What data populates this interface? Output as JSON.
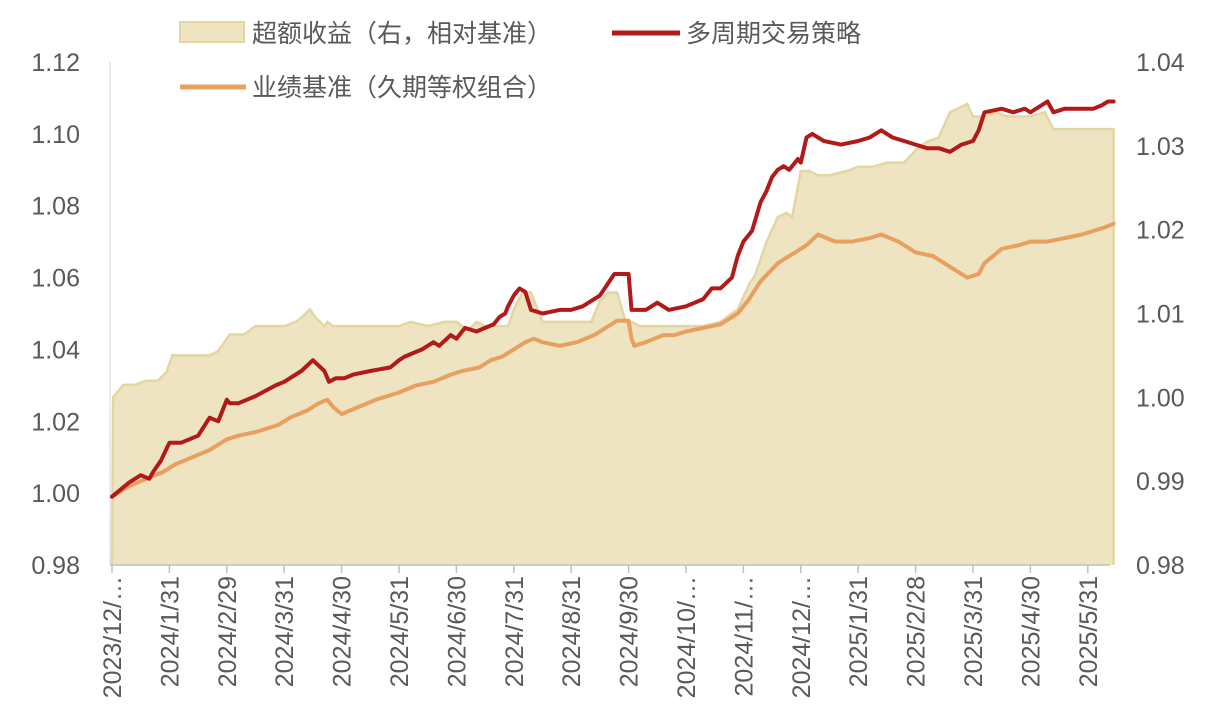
{
  "chart_data": {
    "type": "line",
    "title": "",
    "xlabel": "",
    "ylabel_left": "",
    "ylabel_right": "",
    "colors": {
      "excess_fill": "#eee4c2",
      "excess_stroke": "#e3d6a2",
      "strategy": "#b21a1a",
      "benchmark": "#e8a060",
      "axis": "#595959"
    },
    "legend": [
      {
        "key": "excess",
        "label": "超额收益（右，相对基准）",
        "marker": "box"
      },
      {
        "key": "strategy",
        "label": "多周期交易策略",
        "marker": "line"
      },
      {
        "key": "benchmark",
        "label": "业绩基准（久期等权组合）",
        "marker": "line"
      }
    ],
    "left_axis": {
      "min": 0.98,
      "max": 1.12,
      "ticks": [
        "0.98",
        "1.00",
        "1.02",
        "1.04",
        "1.06",
        "1.08",
        "1.10",
        "1.12"
      ]
    },
    "right_axis": {
      "min": 0.98,
      "max": 1.04,
      "ticks": [
        "0.98",
        "0.99",
        "1.00",
        "1.01",
        "1.02",
        "1.03",
        "1.04"
      ]
    },
    "x_tick_labels": [
      "2023/12/…",
      "2024/1/31",
      "2024/2/29",
      "2024/3/31",
      "2024/4/30",
      "2024/5/31",
      "2024/6/30",
      "2024/7/31",
      "2024/8/31",
      "2024/9/30",
      "2024/10/…",
      "2024/11/…",
      "2024/12/…",
      "2025/1/31",
      "2025/2/28",
      "2025/3/31",
      "2025/4/30",
      "2025/5/31"
    ],
    "x_tick_positions": [
      0,
      1,
      2,
      3,
      4,
      5,
      6,
      7,
      8,
      9,
      10,
      11,
      12,
      13,
      14,
      15,
      16,
      17
    ],
    "x_range": [
      0,
      17.45
    ],
    "series": [
      {
        "key": "strategy",
        "axis": "left",
        "x": [
          0,
          0.3,
          0.5,
          0.65,
          0.72,
          0.85,
          1,
          1.2,
          1.5,
          1.7,
          1.85,
          2,
          2.05,
          2.2,
          2.5,
          2.85,
          3,
          3.3,
          3.5,
          3.7,
          3.78,
          3.9,
          4.05,
          4.2,
          4.5,
          4.85,
          5,
          5.1,
          5.4,
          5.6,
          5.7,
          5.9,
          6,
          6.15,
          6.35,
          6.5,
          6.65,
          6.75,
          6.85,
          6.9,
          7,
          7.1,
          7.2,
          7.3,
          7.5,
          7.8,
          8,
          8.2,
          8.5,
          8.75,
          8.9,
          9,
          9.05,
          9.3,
          9.5,
          9.7,
          10,
          10.3,
          10.45,
          10.6,
          10.8,
          10.9,
          11,
          11.15,
          11.3,
          11.4,
          11.5,
          11.6,
          11.7,
          11.8,
          11.95,
          12,
          12.1,
          12.2,
          12.4,
          12.7,
          13,
          13.2,
          13.4,
          13.6,
          13.8,
          14,
          14.2,
          14.4,
          14.6,
          14.8,
          15,
          15.1,
          15.2,
          15.5,
          15.7,
          15.9,
          16,
          16.2,
          16.3,
          16.4,
          16.6,
          16.9,
          17.1,
          17.25,
          17.35,
          17.45
        ],
        "y": [
          0.999,
          1.003,
          1.005,
          1.004,
          1.006,
          1.009,
          1.014,
          1.014,
          1.016,
          1.021,
          1.02,
          1.026,
          1.025,
          1.025,
          1.027,
          1.03,
          1.031,
          1.034,
          1.037,
          1.034,
          1.031,
          1.032,
          1.032,
          1.033,
          1.034,
          1.035,
          1.037,
          1.038,
          1.04,
          1.042,
          1.041,
          1.044,
          1.043,
          1.046,
          1.045,
          1.046,
          1.047,
          1.049,
          1.05,
          1.052,
          1.055,
          1.057,
          1.056,
          1.051,
          1.05,
          1.051,
          1.051,
          1.052,
          1.055,
          1.061,
          1.061,
          1.061,
          1.051,
          1.051,
          1.053,
          1.051,
          1.052,
          1.054,
          1.057,
          1.057,
          1.06,
          1.066,
          1.07,
          1.073,
          1.081,
          1.084,
          1.088,
          1.09,
          1.091,
          1.09,
          1.093,
          1.092,
          1.099,
          1.1,
          1.098,
          1.097,
          1.098,
          1.099,
          1.101,
          1.099,
          1.098,
          1.097,
          1.096,
          1.096,
          1.095,
          1.097,
          1.098,
          1.101,
          1.106,
          1.107,
          1.106,
          1.107,
          1.106,
          1.108,
          1.109,
          1.106,
          1.107,
          1.107,
          1.107,
          1.108,
          1.109,
          1.109
        ]
      },
      {
        "key": "benchmark",
        "axis": "left",
        "x": [
          0,
          0.3,
          0.6,
          0.9,
          1.1,
          1.4,
          1.7,
          2,
          2.2,
          2.5,
          2.9,
          3.1,
          3.4,
          3.6,
          3.75,
          3.85,
          4,
          4.3,
          4.6,
          5,
          5.3,
          5.6,
          5.9,
          6.1,
          6.4,
          6.6,
          6.8,
          7,
          7.1,
          7.2,
          7.35,
          7.5,
          7.8,
          8.1,
          8.4,
          8.6,
          8.8,
          9,
          9.05,
          9.1,
          9.3,
          9.6,
          9.8,
          10,
          10.3,
          10.6,
          10.9,
          11.1,
          11.3,
          11.6,
          11.9,
          12.1,
          12.3,
          12.6,
          12.9,
          13.2,
          13.4,
          13.7,
          14,
          14.3,
          14.5,
          14.7,
          14.9,
          15.1,
          15.2,
          15.5,
          15.8,
          16,
          16.3,
          16.6,
          16.9,
          17.1,
          17.3,
          17.45
        ],
        "y": [
          0.999,
          1.002,
          1.004,
          1.006,
          1.008,
          1.01,
          1.012,
          1.015,
          1.016,
          1.017,
          1.019,
          1.021,
          1.023,
          1.025,
          1.026,
          1.024,
          1.022,
          1.024,
          1.026,
          1.028,
          1.03,
          1.031,
          1.033,
          1.034,
          1.035,
          1.037,
          1.038,
          1.04,
          1.041,
          1.042,
          1.043,
          1.042,
          1.041,
          1.042,
          1.044,
          1.046,
          1.048,
          1.048,
          1.043,
          1.041,
          1.042,
          1.044,
          1.044,
          1.045,
          1.046,
          1.047,
          1.05,
          1.054,
          1.059,
          1.064,
          1.067,
          1.069,
          1.072,
          1.07,
          1.07,
          1.071,
          1.072,
          1.07,
          1.067,
          1.066,
          1.064,
          1.062,
          1.06,
          1.061,
          1.064,
          1.068,
          1.069,
          1.07,
          1.07,
          1.071,
          1.072,
          1.073,
          1.074,
          1.075
        ]
      },
      {
        "key": "excess",
        "axis": "right",
        "type": "area",
        "x": [
          0,
          0.02,
          0.2,
          0.4,
          0.6,
          0.8,
          0.95,
          1.05,
          1.2,
          1.5,
          1.7,
          1.85,
          2.05,
          2.3,
          2.5,
          2.7,
          2.9,
          3,
          3.2,
          3.3,
          3.45,
          3.55,
          3.7,
          3.75,
          3.85,
          4,
          4.3,
          4.6,
          5,
          5.2,
          5.5,
          5.8,
          6,
          6.2,
          6.35,
          6.5,
          6.7,
          6.9,
          7,
          7.15,
          7.3,
          7.5,
          7.8,
          8.1,
          8.35,
          8.5,
          8.65,
          8.8,
          8.95,
          9.05,
          9.2,
          9.4,
          9.7,
          10,
          10.3,
          10.6,
          10.9,
          11.1,
          11.2,
          11.4,
          11.6,
          11.75,
          11.85,
          12,
          12.15,
          12.3,
          12.5,
          12.8,
          13,
          13.25,
          13.5,
          13.8,
          14,
          14.2,
          14.4,
          14.6,
          14.75,
          14.9,
          15,
          15.2,
          15.4,
          15.6,
          15.8,
          16,
          16.25,
          16.4,
          16.6,
          16.8,
          17,
          17.2,
          17.45
        ],
        "y": [
          0.98,
          1.0,
          1.0015,
          1.0015,
          1.002,
          1.002,
          1.003,
          1.005,
          1.005,
          1.005,
          1.005,
          1.0055,
          1.0075,
          1.0075,
          1.0085,
          1.0085,
          1.0085,
          1.0085,
          1.009,
          1.0095,
          1.0105,
          1.0095,
          1.0085,
          1.009,
          1.0085,
          1.0085,
          1.0085,
          1.0085,
          1.0085,
          1.009,
          1.0085,
          1.009,
          1.009,
          1.008,
          1.009,
          1.0085,
          1.0085,
          1.0085,
          1.0105,
          1.0125,
          1.0125,
          1.009,
          1.009,
          1.009,
          1.009,
          1.0115,
          1.0125,
          1.0125,
          1.009,
          1.009,
          1.0085,
          1.0085,
          1.0085,
          1.0085,
          1.0085,
          1.009,
          1.0105,
          1.0135,
          1.0145,
          1.0185,
          1.0215,
          1.022,
          1.0215,
          1.027,
          1.027,
          1.0265,
          1.0265,
          1.027,
          1.0275,
          1.0275,
          1.028,
          1.028,
          1.0295,
          1.0305,
          1.031,
          1.034,
          1.0345,
          1.035,
          1.0335,
          1.0335,
          1.034,
          1.0335,
          1.0335,
          1.0335,
          1.034,
          1.032,
          1.032,
          1.032,
          1.032,
          1.032,
          1.032
        ]
      }
    ]
  }
}
